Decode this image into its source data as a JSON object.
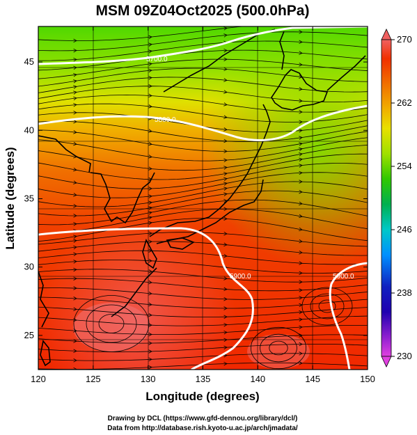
{
  "title": "MSM 09Z04Oct2025 (500.0hPa)",
  "x_axis": {
    "label": "Longitude (degrees)",
    "range": [
      120,
      150
    ],
    "ticks": [
      120,
      125,
      130,
      135,
      140,
      145,
      150
    ]
  },
  "y_axis": {
    "label": "Latitude  (degrees)",
    "range": [
      22.5,
      47.6
    ],
    "ticks": [
      25,
      30,
      35,
      40,
      45
    ]
  },
  "colorbar": {
    "range": [
      230,
      270
    ],
    "labels": [
      270,
      262,
      254,
      246,
      238,
      230
    ],
    "colors": {
      "230": "#e040e0",
      "236": "#7010c0",
      "240": "#1020c0",
      "244": "#0090ff",
      "248": "#00d0d0",
      "252": "#00b050",
      "256": "#40d000",
      "260": "#b0e000",
      "263": "#e8e000",
      "266": "#f09000",
      "268": "#f03000",
      "270": "#f06060"
    }
  },
  "contours": [
    {
      "value": "5700.0"
    },
    {
      "value": "5800.0"
    },
    {
      "value": "5900.0"
    },
    {
      "value": "5900.0"
    },
    {
      "value": "5900.0"
    }
  ],
  "credits": [
    "Drawing by DCL (https://www.gfd-dennou.org/library/dcl/)",
    "Data from http://database.rish.kyoto-u.ac.jp/arch/jmadata/"
  ]
}
